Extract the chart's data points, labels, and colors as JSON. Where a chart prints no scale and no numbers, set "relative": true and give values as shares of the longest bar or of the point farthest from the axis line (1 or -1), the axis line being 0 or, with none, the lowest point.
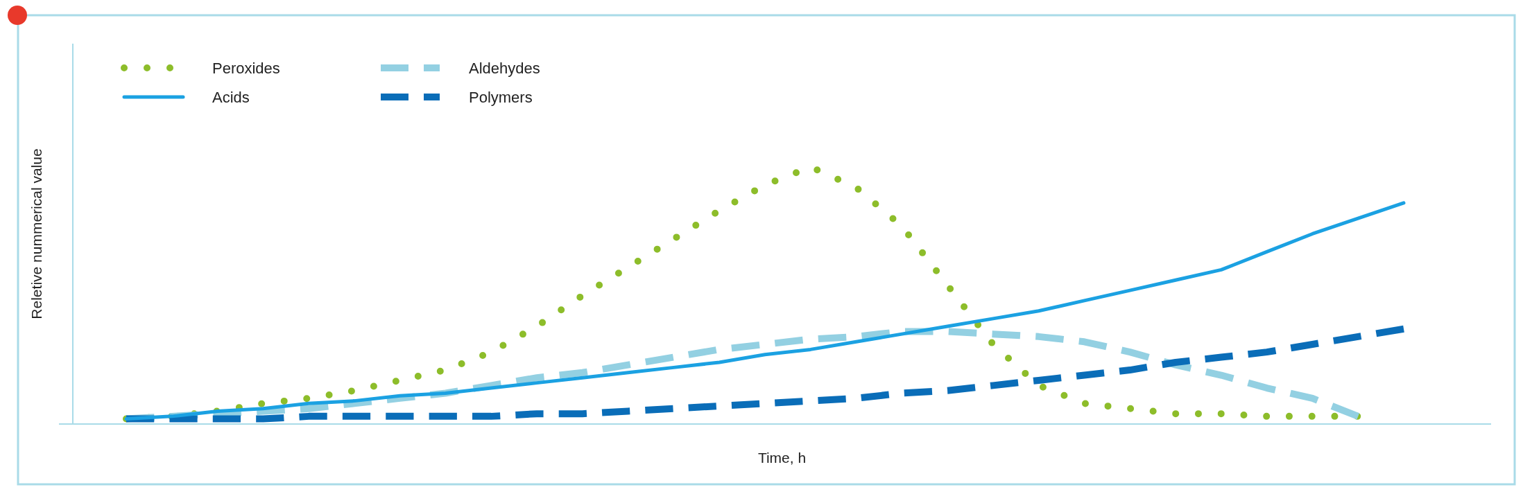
{
  "chart_data": {
    "type": "line",
    "relative": true,
    "xlabel": "Time, h",
    "ylabel": "Reletive nummerical value",
    "legend": "top left",
    "categories": [
      null,
      null,
      null,
      null,
      null,
      null,
      null,
      null,
      null,
      null,
      null,
      null,
      null,
      null,
      null,
      null,
      null,
      null,
      null,
      null,
      null,
      null,
      null,
      null,
      null,
      null,
      null,
      null,
      null
    ],
    "series": [
      {
        "name": "Peroxides",
        "color": "#8dbd2a",
        "line_style": "dotted",
        "values": [
          0.02,
          0.03,
          0.05,
          0.08,
          0.1,
          0.13,
          0.17,
          0.21,
          0.28,
          0.38,
          0.5,
          0.61,
          0.72,
          0.83,
          0.93,
          1,
          0.92,
          0.77,
          0.54,
          0.31,
          0.15,
          0.08,
          0.06,
          0.04,
          0.04,
          0.03,
          0.03,
          0.03,
          null
        ]
      },
      {
        "name": "Acids",
        "color": "#1ba1e2",
        "line_style": "solid",
        "values": [
          0.02,
          0.03,
          0.05,
          0.06,
          0.08,
          0.09,
          0.11,
          0.12,
          0.14,
          0.16,
          0.18,
          0.2,
          0.22,
          0.24,
          0.27,
          0.29,
          0.32,
          0.35,
          0.38,
          0.41,
          0.44,
          0.48,
          0.52,
          0.56,
          0.6,
          0.67,
          0.74,
          0.8,
          0.86
        ]
      },
      {
        "name": "Aldehydes",
        "color": "#93d0e2",
        "line_style": "dashed",
        "values": [
          0.02,
          0.03,
          0.04,
          0.05,
          0.06,
          0.08,
          0.1,
          0.12,
          0.15,
          0.18,
          0.2,
          0.23,
          0.26,
          0.29,
          0.31,
          0.33,
          0.34,
          0.36,
          0.36,
          0.35,
          0.34,
          0.32,
          0.28,
          0.23,
          0.19,
          0.14,
          0.1,
          0.03,
          null
        ]
      },
      {
        "name": "Polymers",
        "color": "#0a6db8",
        "line_style": "dashed",
        "values": [
          0.02,
          0.02,
          0.02,
          0.02,
          0.03,
          0.03,
          0.03,
          0.03,
          0.03,
          0.04,
          0.04,
          0.05,
          0.06,
          0.07,
          0.08,
          0.09,
          0.1,
          0.12,
          0.13,
          0.15,
          0.17,
          0.19,
          0.21,
          0.24,
          0.26,
          0.28,
          0.31,
          0.34,
          0.37
        ]
      }
    ]
  }
}
